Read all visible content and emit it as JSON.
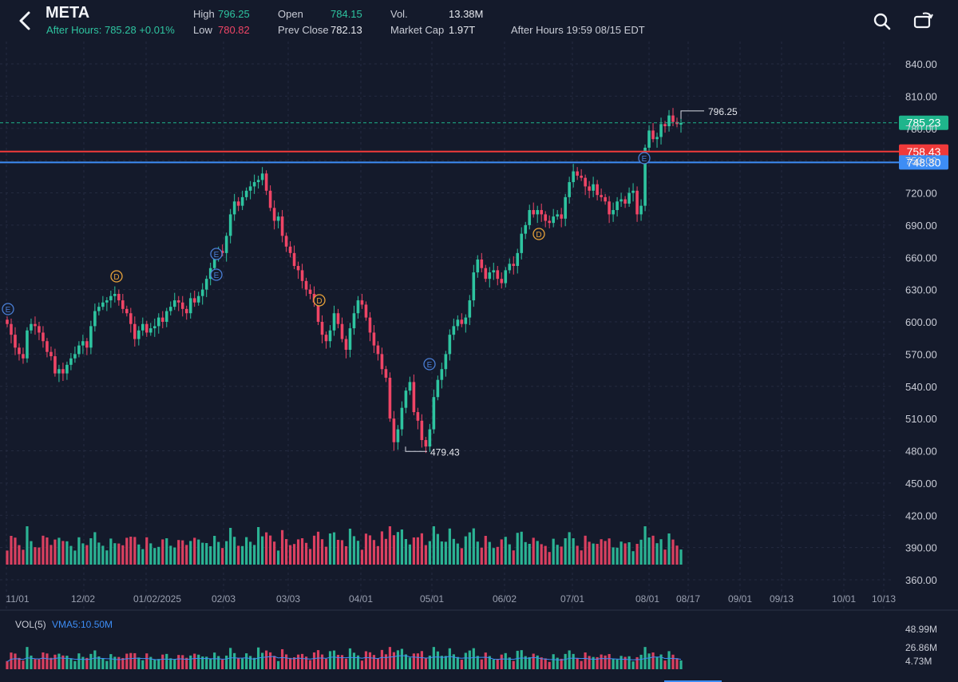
{
  "header": {
    "ticker": "META",
    "after_hours": "After Hours: 785.28 +0.01%",
    "high_label": "High",
    "high_value": "796.25",
    "low_label": "Low",
    "low_value": "780.82",
    "open_label": "Open",
    "open_value": "784.15",
    "prev_close_label": "Prev Close",
    "prev_close_value": "782.13",
    "vol_label": "Vol.",
    "vol_value": "13.38M",
    "mcap_label": "Market Cap",
    "mcap_value": "1.97T",
    "session": "After Hours 19:59 08/15 EDT"
  },
  "icons": {
    "back": "chevron-left-icon",
    "search": "search-icon",
    "rotate": "rotate-screen-icon"
  },
  "colors": {
    "up": "#2ec4a0",
    "down": "#ef4566",
    "bg": "#141a2b",
    "blue_line": "#3d8df5",
    "red_line": "#f03a3a",
    "vma": "#3d8df5"
  },
  "chart_data": {
    "type": "candlestick",
    "y_ticks": [
      "840.00",
      "810.00",
      "780.00",
      "750.00",
      "720.00",
      "690.00",
      "660.00",
      "630.00",
      "600.00",
      "570.00",
      "540.00",
      "510.00",
      "480.00",
      "450.00",
      "420.00",
      "390.00",
      "360.00"
    ],
    "x_labels": [
      "11/01",
      "12/02",
      "01/02/2025",
      "02/03",
      "03/03",
      "04/01",
      "05/01",
      "06/02",
      "07/01",
      "08/01",
      "08/17",
      "09/01",
      "09/13",
      "10/01",
      "10/13"
    ],
    "price_tags": [
      {
        "value": "785.23",
        "color": "#1fb58c"
      },
      {
        "value": "758.43",
        "color": "#f03a3a"
      },
      {
        "value": "748.30",
        "color": "#3d8df5"
      }
    ],
    "annotations": {
      "high": "796.25",
      "low": "479.43"
    },
    "event_markers": [
      "E",
      "D",
      "E",
      "E",
      "D",
      "E",
      "D",
      "E"
    ],
    "volume_panel": {
      "label": "VOL(5)",
      "vma_label": "VMA5:10.50M",
      "ticks": [
        "48.99M",
        "26.86M",
        "4.73M"
      ]
    },
    "closes": [
      598,
      588,
      576,
      570,
      566,
      592,
      598,
      596,
      590,
      582,
      572,
      568,
      552,
      556,
      552,
      560,
      566,
      570,
      578,
      582,
      576,
      596,
      610,
      614,
      618,
      620,
      624,
      626,
      620,
      612,
      608,
      598,
      584,
      592,
      598,
      590,
      594,
      596,
      604,
      600,
      610,
      614,
      620,
      618,
      612,
      608,
      622,
      618,
      624,
      630,
      640,
      650,
      660,
      666,
      664,
      680,
      700,
      712,
      708,
      716,
      722,
      726,
      730,
      732,
      738,
      722,
      706,
      694,
      698,
      680,
      670,
      664,
      652,
      648,
      638,
      630,
      626,
      618,
      600,
      588,
      582,
      592,
      608,
      598,
      584,
      574,
      594,
      608,
      620,
      616,
      604,
      590,
      578,
      570,
      556,
      548,
      510,
      488,
      500,
      520,
      536,
      544,
      516,
      508,
      490,
      484,
      500,
      530,
      546,
      556,
      570,
      588,
      596,
      602,
      598,
      604,
      620,
      646,
      658,
      650,
      640,
      646,
      648,
      640,
      636,
      648,
      654,
      652,
      664,
      682,
      690,
      704,
      700,
      704,
      700,
      694,
      692,
      698,
      700,
      696,
      716,
      730,
      740,
      736,
      734,
      726,
      722,
      728,
      718,
      716,
      712,
      700,
      704,
      712,
      714,
      710,
      720,
      722,
      700,
      708,
      762,
      778,
      770,
      772,
      784,
      782,
      792,
      786,
      784,
      785
    ]
  }
}
